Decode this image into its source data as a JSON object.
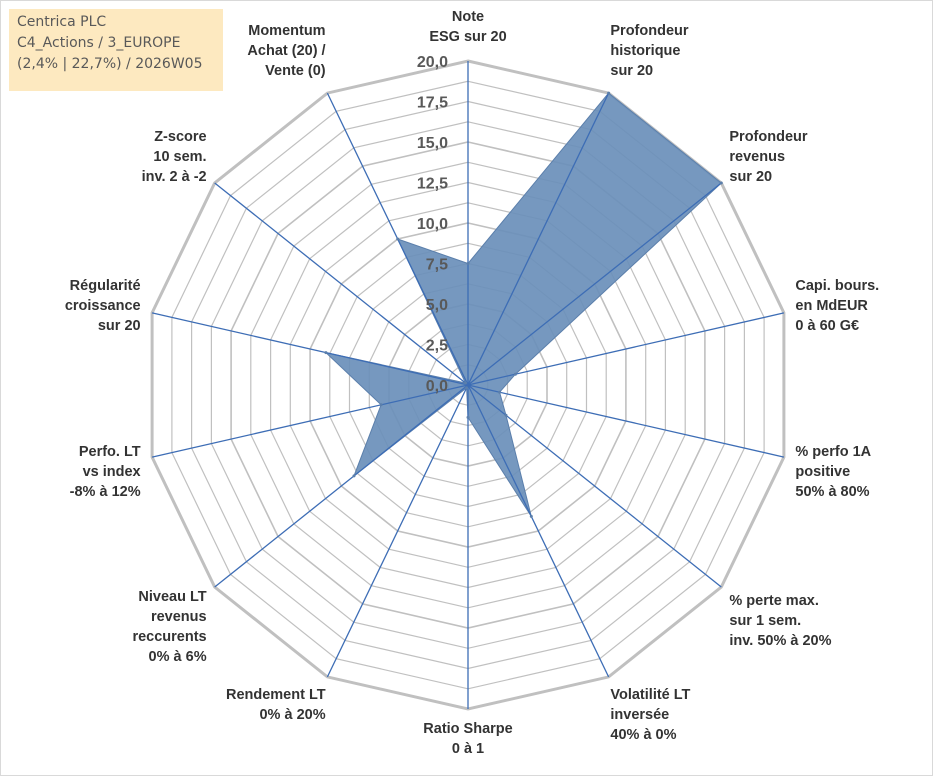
{
  "info": {
    "line1": "Centrica PLC",
    "line2": "C4_Actions / 3_EUROPE",
    "line3": "(2,4% | 22,7%) / 2026W05"
  },
  "chart_data": {
    "type": "radar",
    "title": "",
    "rmin": 0,
    "rmax": 20,
    "ticks": [
      "0,0",
      "2,5",
      "5,0",
      "7,5",
      "10,0",
      "12,5",
      "15,0",
      "17,5",
      "20,0"
    ],
    "axes": [
      [
        "Note",
        "ESG sur 20"
      ],
      [
        "Profondeur",
        "historique",
        "sur 20"
      ],
      [
        "Profondeur",
        "revenus",
        "sur 20"
      ],
      [
        "Capi. bours.",
        "en MdEUR",
        "0 à 60 G€"
      ],
      [
        "% perfo 1A",
        "positive",
        "50% à 80%"
      ],
      [
        "% perte max.",
        "sur 1 sem.",
        "inv. 50% à 20%"
      ],
      [
        "Volatilité LT",
        "inversée",
        "40% à 0%"
      ],
      [
        "Ratio Sharpe",
        "0 à 1"
      ],
      [
        "Rendement LT",
        "0% à 20%"
      ],
      [
        "Niveau LT",
        "revenus",
        "reccurents",
        "0% à 6%"
      ],
      [
        "Perfo. LT",
        "vs index",
        "-8% à 12%"
      ],
      [
        "Régularité",
        "croissance",
        "sur 20"
      ],
      [
        "Z-score",
        "10 sem.",
        "inv. 2 à -2"
      ],
      [
        "Momentum",
        "Achat (20) /",
        "Vente (0)"
      ]
    ],
    "series": [
      {
        "values": [
          7.5,
          20.0,
          20.0,
          3.0,
          2.0,
          3.0,
          9.0,
          2.0,
          0.2,
          9.0,
          5.5,
          9.0,
          0.2,
          10.0
        ],
        "fill": "#6a8fba",
        "stroke": "#5b7fab"
      }
    ],
    "colors": {
      "ring": "#c0c0c0",
      "spoke": "#3d6db5"
    }
  }
}
